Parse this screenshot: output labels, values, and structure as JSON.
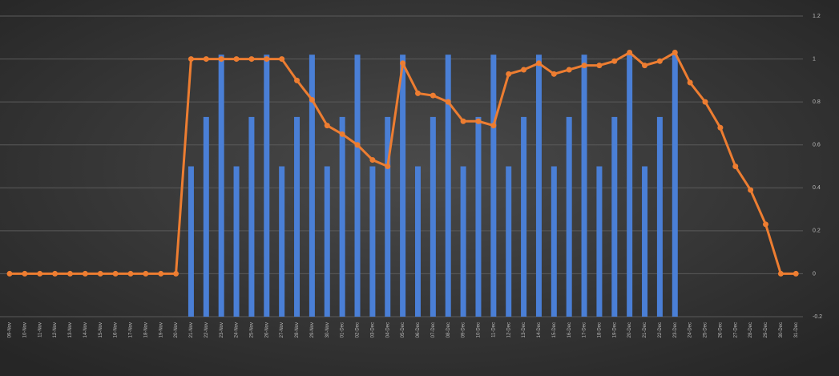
{
  "chart_data": {
    "type": "bar",
    "categories": [
      "09-Nov",
      "10-Nov",
      "11-Nov",
      "12-Nov",
      "13-Nov",
      "14-Nov",
      "15-Nov",
      "16-Nov",
      "17-Nov",
      "18-Nov",
      "19-Nov",
      "20-Nov",
      "21-Nov",
      "22-Nov",
      "23-Nov",
      "24-Nov",
      "25-Nov",
      "26-Nov",
      "27-Nov",
      "28-Nov",
      "29-Nov",
      "30-Nov",
      "01-Dec",
      "02-Dec",
      "03-Dec",
      "04-Dec",
      "05-Dec",
      "06-Dec",
      "07-Dec",
      "08-Dec",
      "09-Dec",
      "10-Dec",
      "11-Dec",
      "12-Dec",
      "13-Dec",
      "14-Dec",
      "15-Dec",
      "16-Dec",
      "17-Dec",
      "18-Dec",
      "19-Dec",
      "20-Dec",
      "21-Dec",
      "22-Dec",
      "23-Dec",
      "24-Dec",
      "25-Dec",
      "26-Dec",
      "27-Dec",
      "28-Dec",
      "29-Dec",
      "30-Dec",
      "31-Dec"
    ],
    "series": [
      {
        "type": "bar",
        "color": "#4a7fd6",
        "values": [
          null,
          null,
          null,
          null,
          null,
          null,
          null,
          null,
          null,
          null,
          null,
          null,
          0.5,
          0.73,
          1.02,
          0.5,
          0.73,
          1.02,
          0.5,
          0.73,
          1.02,
          0.5,
          0.73,
          1.02,
          0.5,
          0.73,
          1.02,
          0.5,
          0.73,
          1.02,
          0.5,
          0.73,
          1.02,
          0.5,
          0.73,
          1.02,
          0.5,
          0.73,
          1.02,
          0.5,
          0.73,
          1.02,
          0.5,
          0.73,
          1.02,
          null,
          null,
          null,
          null,
          null,
          null,
          null,
          null
        ]
      },
      {
        "type": "line",
        "color": "#ed7d31",
        "values": [
          0,
          0,
          0,
          0,
          0,
          0,
          0,
          0,
          0,
          0,
          0,
          0,
          1,
          1,
          1,
          1,
          1,
          1,
          1,
          0.9,
          0.81,
          0.69,
          0.65,
          0.6,
          0.53,
          0.5,
          0.98,
          0.84,
          0.83,
          0.8,
          0.71,
          0.71,
          0.69,
          0.93,
          0.95,
          0.98,
          0.93,
          0.95,
          0.97,
          0.97,
          0.99,
          1.03,
          0.97,
          0.99,
          1.03,
          0.89,
          0.8,
          0.68,
          0.5,
          0.39,
          0.23,
          0,
          0
        ]
      }
    ],
    "ylim": [
      -0.2,
      1.2
    ],
    "yticks": [
      -0.2,
      0,
      0.2,
      0.4,
      0.6,
      0.8,
      1,
      1.2
    ],
    "grid": true
  }
}
